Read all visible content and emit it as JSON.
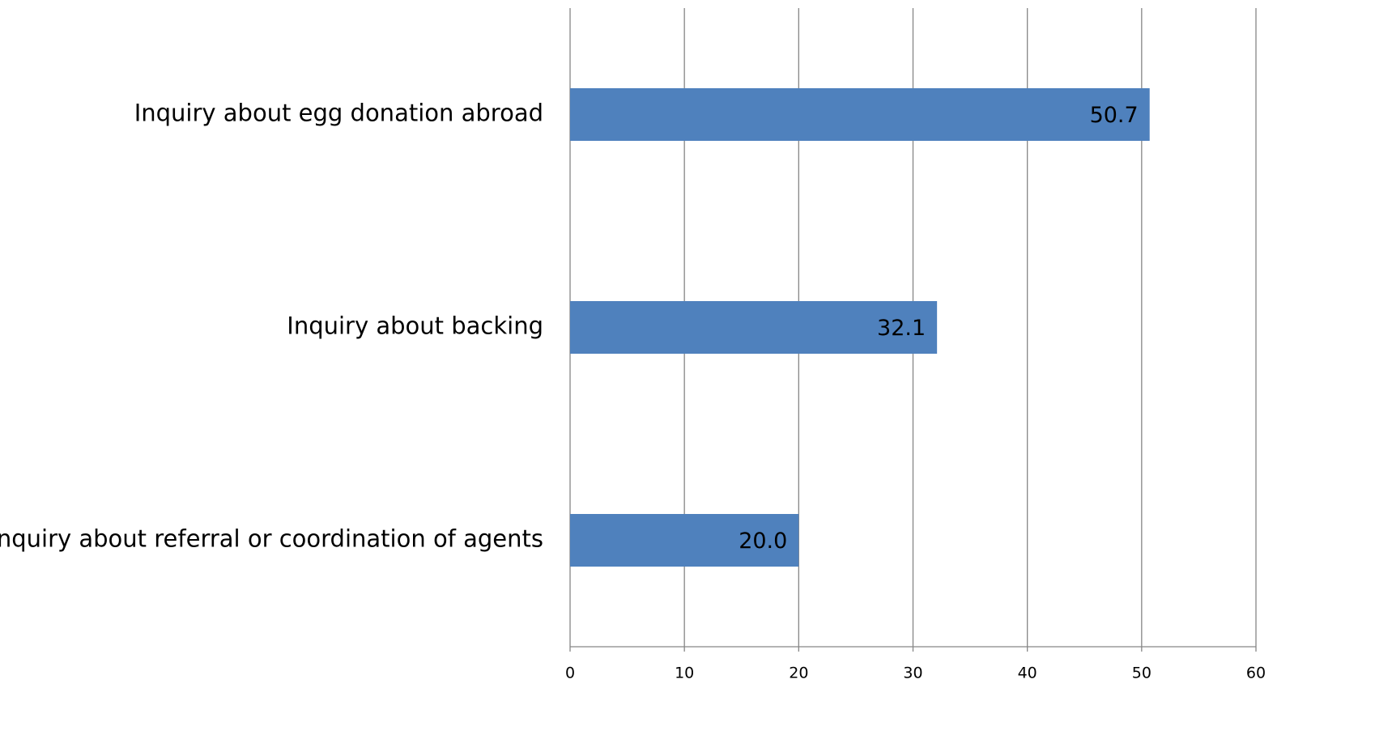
{
  "chart_data": {
    "type": "bar",
    "orientation": "horizontal",
    "categories": [
      "Inquiry about egg donation abroad",
      "Inquiry about backing",
      "Inquiry about referral or coordination of agents"
    ],
    "values": [
      50.7,
      32.1,
      20.0
    ],
    "value_labels": [
      "50.7",
      "32.1",
      "20.0"
    ],
    "color": "#4f81bd",
    "xlim": [
      0,
      60
    ],
    "xticks": [
      0,
      10,
      20,
      30,
      40,
      50,
      60
    ],
    "grid": true
  }
}
